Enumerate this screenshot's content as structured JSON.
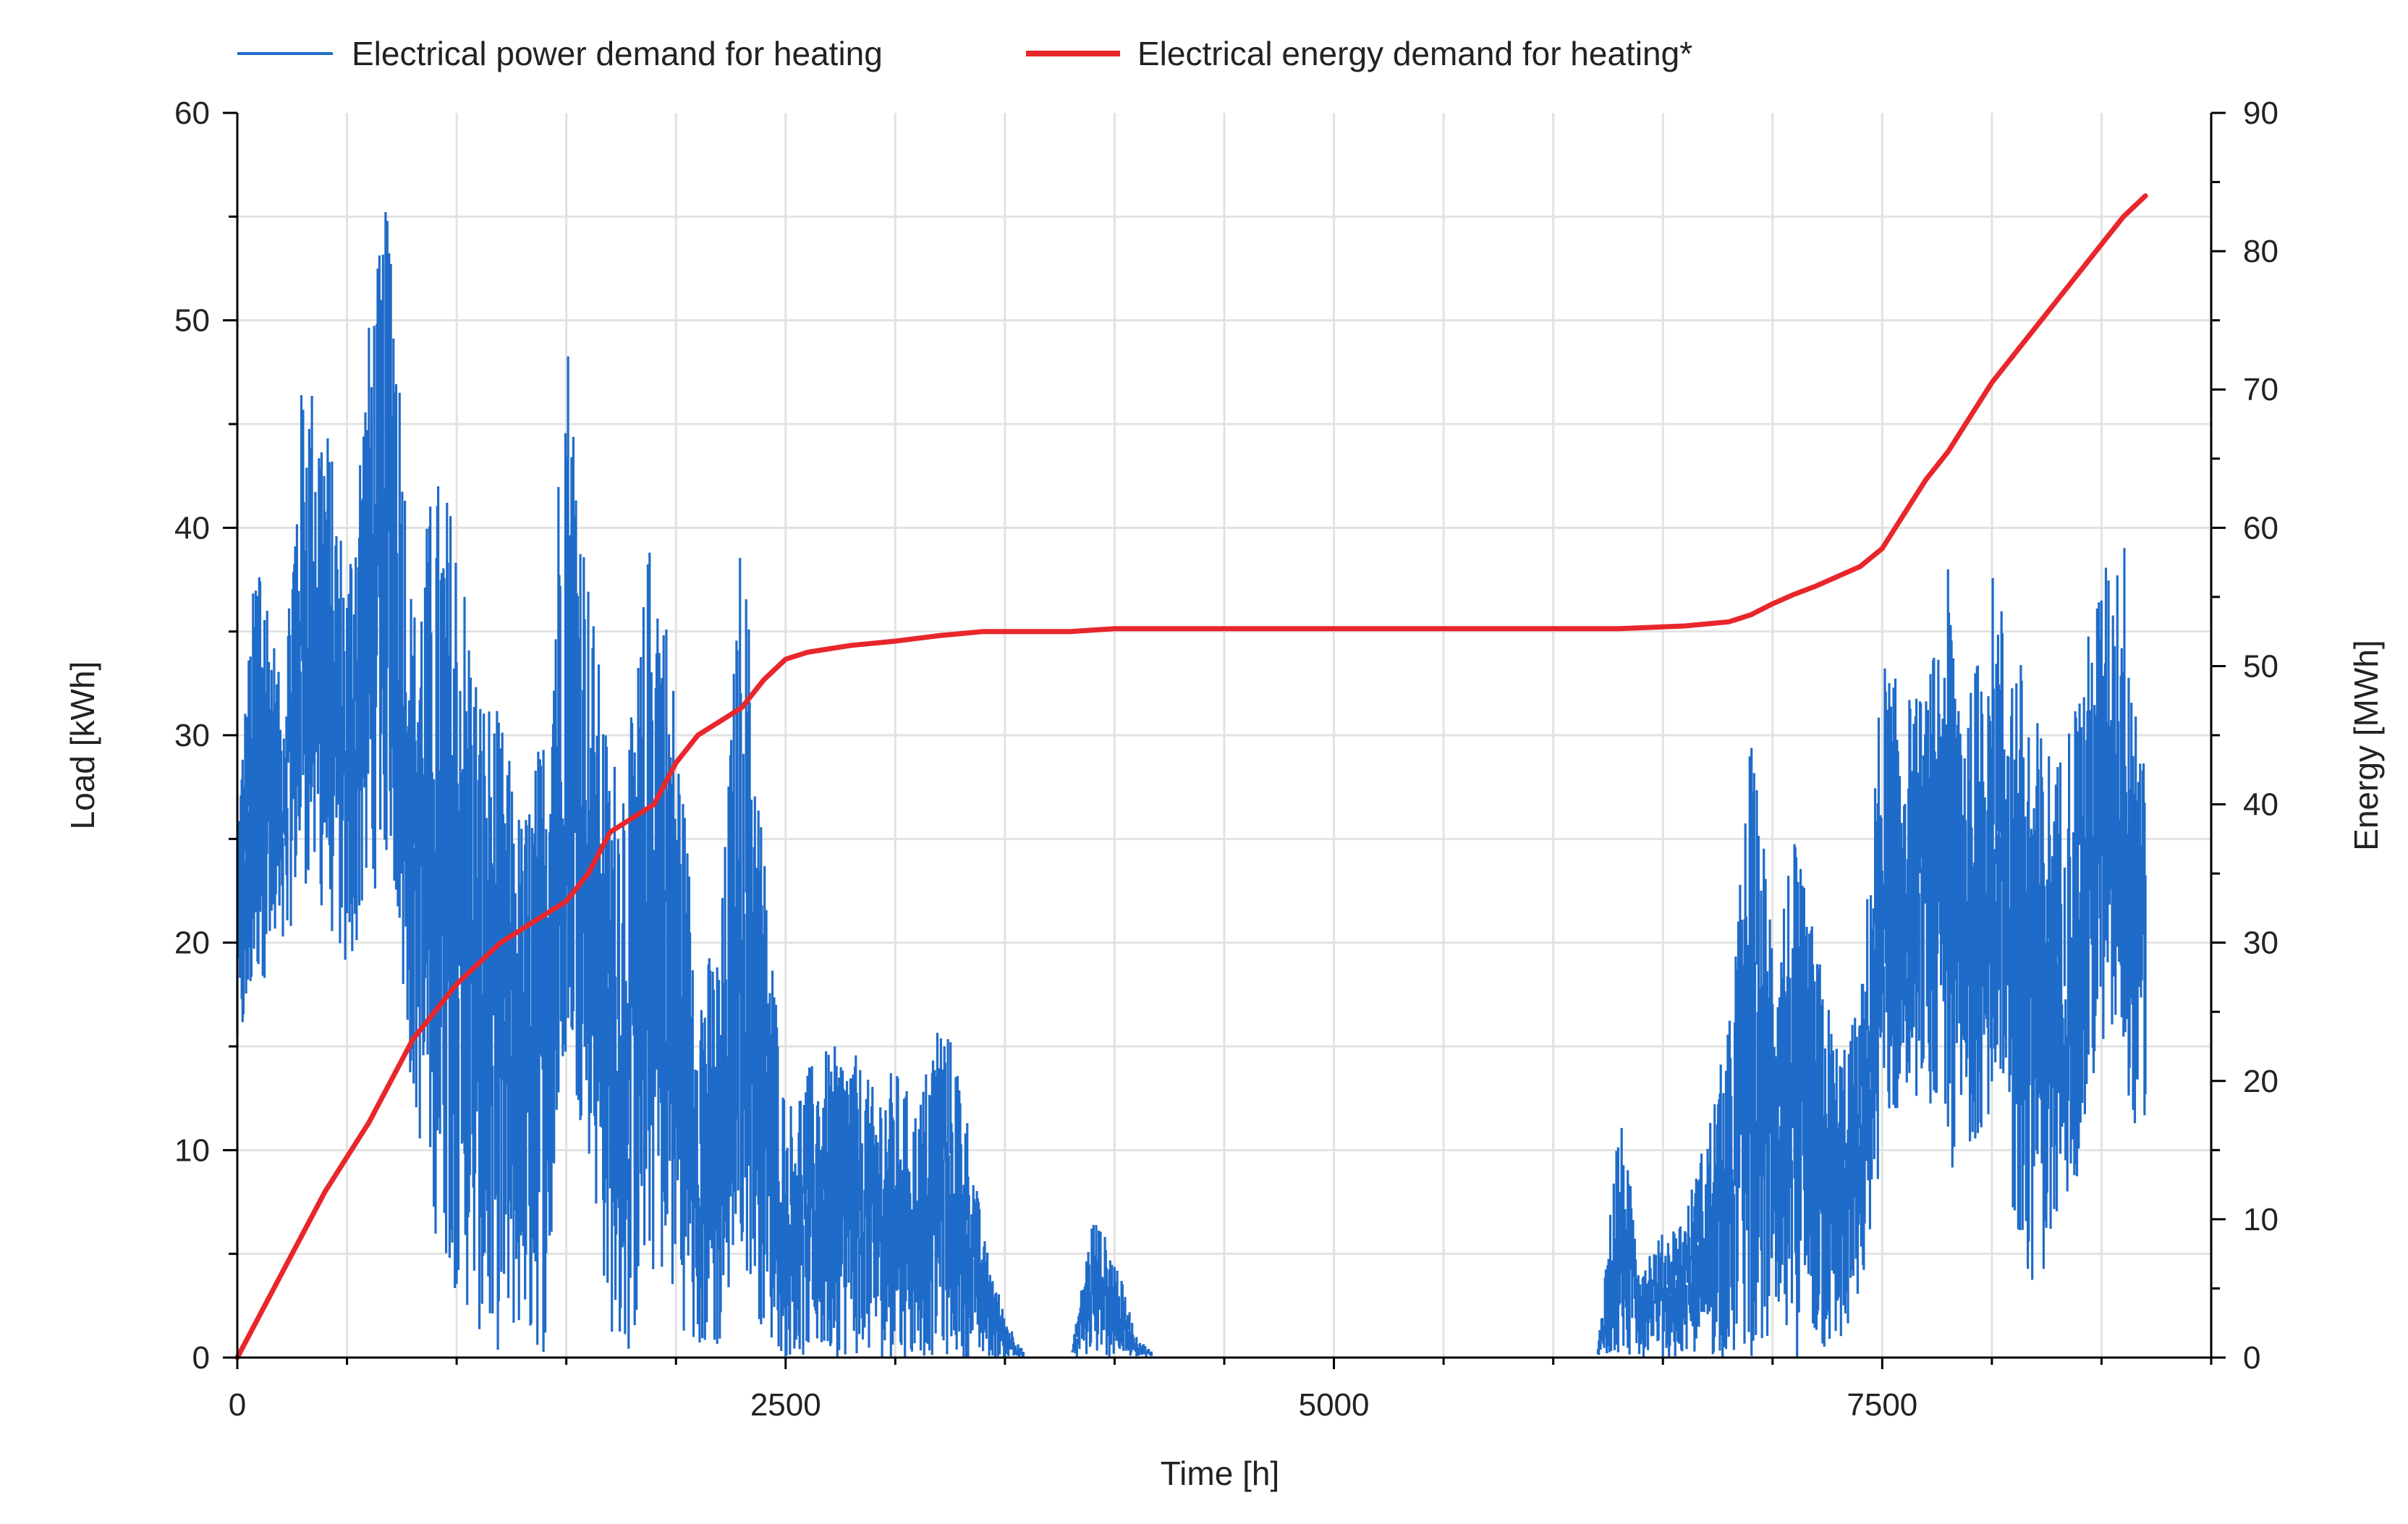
{
  "chart_data": {
    "type": "line",
    "title": "",
    "xlabel": "Time [h]",
    "ylabel_left": "Load [kWh]",
    "ylabel_right": "Energy [MWh]",
    "xlim": [
      0,
      9000
    ],
    "ylim_left": [
      0,
      60
    ],
    "ylim_right": [
      0,
      90
    ],
    "x_ticks": [
      0,
      2500,
      5000,
      7500
    ],
    "x_tick_labels": [
      "0",
      "2500",
      "5000",
      "7500"
    ],
    "y_left_ticks": [
      0,
      10,
      20,
      30,
      40,
      50,
      60
    ],
    "y_left_tick_labels": [
      "0",
      "10",
      "20",
      "30",
      "40",
      "50",
      "60"
    ],
    "y_right_ticks": [
      0,
      10,
      20,
      30,
      40,
      50,
      60,
      70,
      80,
      90
    ],
    "y_right_tick_labels": [
      "0",
      "10",
      "20",
      "30",
      "40",
      "50",
      "60",
      "70",
      "80",
      "90"
    ],
    "grid": true,
    "legend_position": "top",
    "series": [
      {
        "name": "Electrical power demand for heating",
        "axis": "left",
        "color": "#1f6bc9",
        "style": "hourly-spikes",
        "x": [
          0,
          100,
          200,
          300,
          400,
          500,
          600,
          700,
          800,
          900,
          1000,
          1100,
          1200,
          1300,
          1400,
          1500,
          1600,
          1700,
          1800,
          1900,
          2000,
          2100,
          2200,
          2300,
          2400,
          2500,
          2600,
          2700,
          2800,
          2900,
          3000,
          3100,
          3200,
          3300,
          3400,
          3500,
          3600,
          3700,
          3800,
          3900,
          4000,
          4100,
          4200,
          4300,
          4400,
          4500,
          4600,
          4700,
          4800,
          4900,
          5000,
          5100,
          5200,
          5300,
          5400,
          5500,
          5600,
          5700,
          5800,
          5900,
          6000,
          6100,
          6200,
          6300,
          6400,
          6500,
          6600,
          6700,
          6800,
          6900,
          7000,
          7100,
          7200,
          7300,
          7400,
          7500,
          7600,
          7700,
          7800,
          7900,
          8000,
          8100,
          8200,
          8300,
          8400,
          8500,
          8600,
          8700
        ],
        "upper": [
          27,
          41,
          32,
          48,
          46,
          38,
          50,
          57,
          36,
          43,
          41,
          33,
          31,
          26,
          31,
          51,
          38,
          29,
          31,
          42,
          32,
          19,
          20,
          41,
          25,
          12,
          14,
          15,
          15,
          13,
          14,
          12,
          17,
          14,
          6,
          2,
          0,
          0,
          0,
          7,
          5,
          1,
          0,
          0,
          0,
          0,
          0,
          0,
          0,
          0,
          0,
          0,
          0,
          0,
          0,
          0,
          0,
          0,
          0,
          0,
          0,
          0,
          0,
          12,
          5,
          6,
          7,
          11,
          16,
          30,
          22,
          25,
          20,
          15,
          17,
          34,
          32,
          32,
          38,
          32,
          38,
          35,
          31,
          29,
          33,
          38,
          40,
          30
        ],
        "lower": [
          13,
          18,
          19,
          23,
          21,
          18,
          22,
          24,
          12,
          6,
          3,
          1,
          0,
          1,
          0,
          14,
          10,
          1,
          0,
          4,
          2,
          0,
          0,
          5,
          1,
          0,
          0,
          0,
          0,
          0,
          0,
          0,
          0,
          0,
          0,
          0,
          0,
          0,
          0,
          0,
          0,
          0,
          0,
          0,
          0,
          0,
          0,
          0,
          0,
          0,
          0,
          0,
          0,
          0,
          0,
          0,
          0,
          0,
          0,
          0,
          0,
          0,
          0,
          0,
          0,
          0,
          0,
          0,
          0,
          0,
          0,
          0,
          0,
          0,
          2,
          10,
          12,
          13,
          8,
          10,
          12,
          6,
          3,
          6,
          9,
          15,
          14,
          8
        ]
      },
      {
        "name": "Electrical energy demand for heating*",
        "axis": "right",
        "color": "#e8262b",
        "style": "line",
        "x": [
          0,
          200,
          400,
          600,
          800,
          1000,
          1200,
          1400,
          1500,
          1600,
          1700,
          1800,
          1900,
          2000,
          2100,
          2200,
          2300,
          2400,
          2500,
          2600,
          2800,
          3000,
          3200,
          3400,
          3600,
          3800,
          4000,
          4500,
          5000,
          5500,
          6000,
          6300,
          6600,
          6800,
          6900,
          7000,
          7100,
          7200,
          7300,
          7400,
          7500,
          7600,
          7700,
          7800,
          7900,
          8000,
          8100,
          8200,
          8300,
          8400,
          8500,
          8600,
          8700
        ],
        "values": [
          0,
          6,
          12,
          17,
          23,
          27,
          30,
          32,
          33,
          35,
          38,
          39,
          40,
          43,
          45,
          46,
          47,
          49,
          50.5,
          51,
          51.5,
          51.8,
          52.2,
          52.5,
          52.5,
          52.5,
          52.7,
          52.7,
          52.7,
          52.7,
          52.7,
          52.7,
          52.9,
          53.2,
          53.7,
          54.5,
          55.2,
          55.8,
          56.5,
          57.2,
          58.5,
          61,
          63.5,
          65.5,
          68,
          70.5,
          72.5,
          74.5,
          76.5,
          78.5,
          80.5,
          82.5,
          84
        ]
      }
    ]
  }
}
